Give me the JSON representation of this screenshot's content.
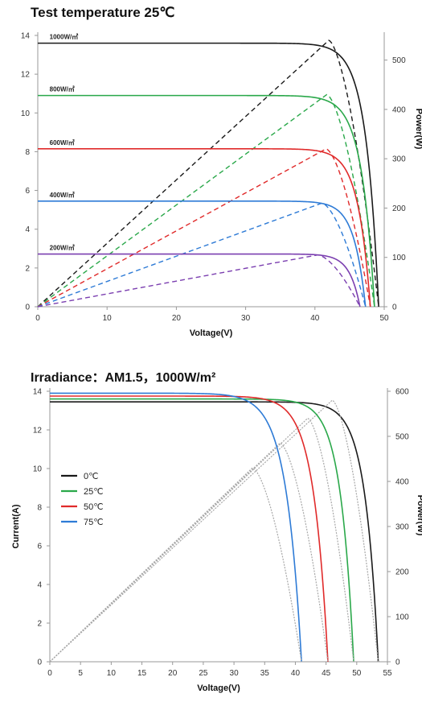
{
  "chart_data": [
    {
      "type": "line",
      "title": "Test temperature  25℃",
      "xlabel": "Voltage(V)",
      "ylabel_left": "",
      "ylabel_right": "Power(W)",
      "xlim": [
        0,
        50
      ],
      "ylim_left": [
        0,
        14
      ],
      "ylim_right": [
        0,
        550
      ],
      "x_ticks": [
        "0",
        "10",
        "20",
        "30",
        "40",
        "50"
      ],
      "y_left_ticks": [
        "0",
        "2",
        "4",
        "6",
        "8",
        "10",
        "12",
        "14"
      ],
      "y_right_ticks": [
        "0",
        "100",
        "200",
        "300",
        "400",
        "500"
      ],
      "grid": false,
      "series": [
        {
          "name": "1000W/㎡",
          "color": "#1a1a1a",
          "isc": 13.6,
          "voc": 49.2,
          "vk": 41.5,
          "pmax_v": 42.0,
          "pmax_w": 540
        },
        {
          "name": "800W/㎡",
          "color": "#2aa84a",
          "isc": 10.9,
          "voc": 48.6,
          "vk": 40.8,
          "pmax_v": 41.7,
          "pmax_w": 430
        },
        {
          "name": "600W/㎡",
          "color": "#e02a2a",
          "isc": 8.15,
          "voc": 48.0,
          "vk": 40.6,
          "pmax_v": 41.6,
          "pmax_w": 320
        },
        {
          "name": "400W/㎡",
          "color": "#2e7bd6",
          "isc": 5.45,
          "voc": 47.3,
          "vk": 40.4,
          "pmax_v": 41.0,
          "pmax_w": 210
        },
        {
          "name": "200W/㎡",
          "color": "#7b3fb0",
          "isc": 2.72,
          "voc": 46.5,
          "vk": 40.2,
          "pmax_v": 40.4,
          "pmax_w": 105
        }
      ]
    },
    {
      "type": "line",
      "title": "Irradiance：AM1.5，1000W/m²",
      "xlabel": "Voltage(V)",
      "ylabel_left": "Current(A)",
      "ylabel_right": "Power(W)",
      "xlim": [
        0,
        55
      ],
      "ylim_left": [
        0,
        14
      ],
      "ylim_right": [
        0,
        600
      ],
      "x_ticks": [
        "0",
        "5",
        "10",
        "15",
        "20",
        "25",
        "30",
        "35",
        "40",
        "45",
        "50",
        "55"
      ],
      "y_left_ticks": [
        "0",
        "2",
        "4",
        "6",
        "8",
        "10",
        "12",
        "14"
      ],
      "y_right_ticks": [
        "0",
        "100",
        "200",
        "300",
        "400",
        "500",
        "600"
      ],
      "grid": false,
      "legend_position": "left-middle",
      "series": [
        {
          "name": "0℃",
          "color": "#1a1a1a",
          "isc": 13.45,
          "voc": 53.5,
          "vk": 44.5,
          "pmax_v": 46.0,
          "pmax_w": 580
        },
        {
          "name": "25℃",
          "color": "#2aa84a",
          "isc": 13.6,
          "voc": 49.5,
          "vk": 40.5,
          "pmax_v": 42.0,
          "pmax_w": 540
        },
        {
          "name": "50℃",
          "color": "#e02a2a",
          "isc": 13.75,
          "voc": 45.3,
          "vk": 35.5,
          "pmax_v": 37.5,
          "pmax_w": 485
        },
        {
          "name": "75℃",
          "color": "#2e7bd6",
          "isc": 13.9,
          "voc": 41.0,
          "vk": 30.5,
          "pmax_v": 33.0,
          "pmax_w": 430
        }
      ]
    }
  ]
}
